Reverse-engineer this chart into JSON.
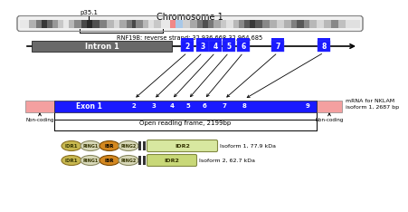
{
  "title": "Chromosome 1",
  "p35_1_label": "p35.1",
  "rnf19b_label": "RNF19B: reverse strand: 32,936,668-32,964,685",
  "intron_label": "Intron 1",
  "intron_exon_nums": [
    "2",
    "3",
    "4",
    "5",
    "6",
    "7",
    "8"
  ],
  "mrna_exon_labels": [
    "Exon 1",
    "2",
    "3",
    "4",
    "5",
    "6",
    "7",
    "8",
    "9"
  ],
  "mrna_label": "mRNA for NKLAM\nisoform 1, 2687 bp",
  "noncoding_label": "Non-coding",
  "orf_label": "Open reading frame, 2199bp",
  "isoform1_label": "Isoform 1, 77.9 kDa",
  "isoform2_label": "Isoform 2, 62.7 kDa",
  "bg_color": "#ffffff",
  "intron_bar_color": "#696969",
  "exon_blue_color": "#1a1aff",
  "noncoding_pink": "#f4a0a0",
  "idr1_color": "#c8b850",
  "ring1_color": "#d8d8b8",
  "ibr_color": "#d48820",
  "ring2_color": "#d8d8b8",
  "idr2_color_iso1": "#d8e8a0",
  "idr2_color_iso2": "#c8d878",
  "linker_color": "#333333"
}
